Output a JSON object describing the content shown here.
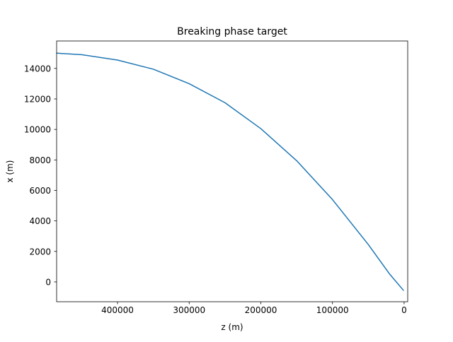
{
  "chart_data": {
    "type": "line",
    "title": "Breaking phase target",
    "xlabel": "z (m)",
    "ylabel": "x (m)",
    "xlim": [
      485000,
      -5000
    ],
    "ylim": [
      -1300,
      15800
    ],
    "x_inverted": true,
    "grid": false,
    "legend": "none",
    "xticks": [
      400000,
      300000,
      200000,
      100000,
      0
    ],
    "xtick_labels": [
      "400000",
      "300000",
      "200000",
      "100000",
      "0"
    ],
    "yticks": [
      0,
      2000,
      4000,
      6000,
      8000,
      10000,
      12000,
      14000
    ],
    "ytick_labels": [
      "0",
      "2000",
      "4000",
      "6000",
      "8000",
      "10000",
      "12000",
      "14000"
    ],
    "series": [
      {
        "color": "#1f77b4",
        "x": [
          485000,
          450000,
          400000,
          350000,
          300000,
          250000,
          200000,
          150000,
          100000,
          50000,
          20000,
          1000
        ],
        "y": [
          15000,
          14900,
          14550,
          13950,
          13000,
          11750,
          10050,
          7950,
          5400,
          2450,
          500,
          -550
        ]
      }
    ]
  }
}
